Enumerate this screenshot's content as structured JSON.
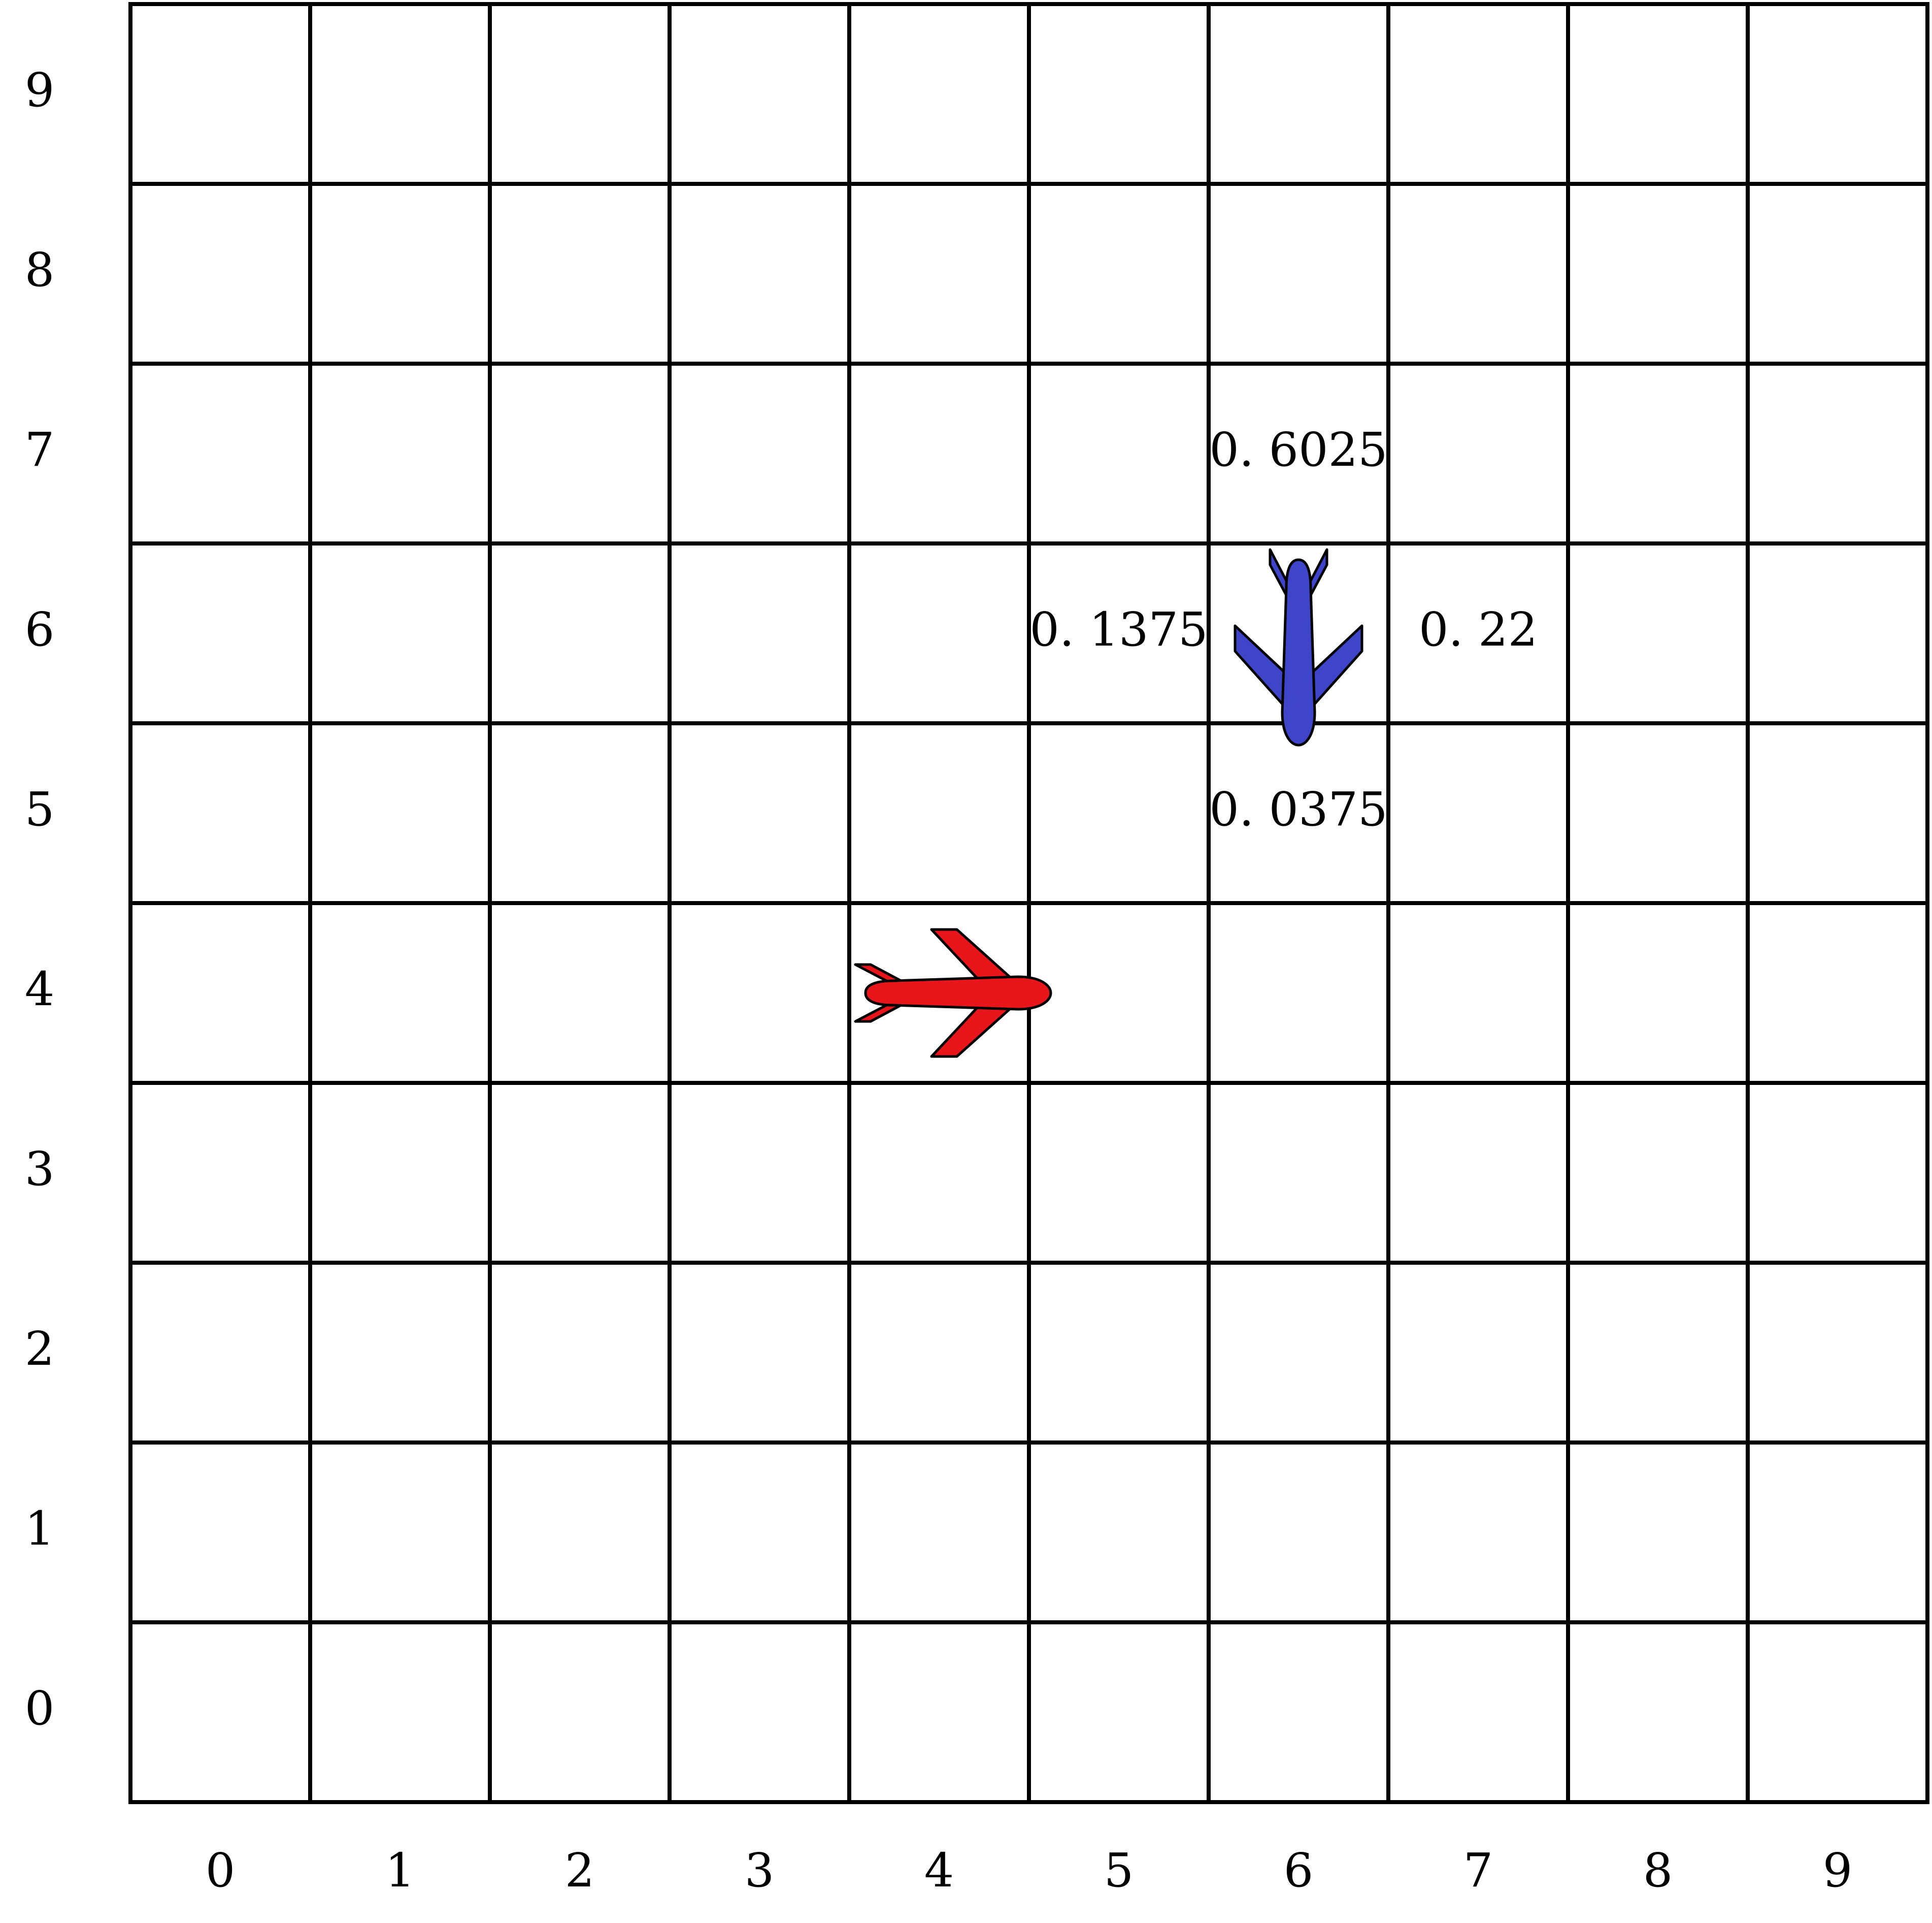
{
  "grid": {
    "columns": 10,
    "rows": 10,
    "x_labels": [
      "0",
      "1",
      "2",
      "3",
      "4",
      "5",
      "6",
      "7",
      "8",
      "9"
    ],
    "y_labels": [
      "0",
      "1",
      "2",
      "3",
      "4",
      "5",
      "6",
      "7",
      "8",
      "9"
    ],
    "line_color": "#000000",
    "background": "#ffffff"
  },
  "aircraft": [
    {
      "name": "red-airplane",
      "color": "#e8151b",
      "cell": [
        4,
        4
      ],
      "heading": "east"
    },
    {
      "name": "blue-airplane",
      "color": "#3f45c9",
      "cell": [
        6,
        6
      ],
      "heading": "south"
    }
  ],
  "probabilities": [
    {
      "name": "prob-up",
      "value": "0. 6025",
      "cell": [
        6,
        7
      ]
    },
    {
      "name": "prob-left",
      "value": "0. 1375",
      "cell": [
        5,
        6
      ]
    },
    {
      "name": "prob-right",
      "value": "0. 22",
      "cell": [
        7,
        6
      ]
    },
    {
      "name": "prob-down",
      "value": "0. 0375",
      "cell": [
        6,
        5
      ]
    }
  ]
}
